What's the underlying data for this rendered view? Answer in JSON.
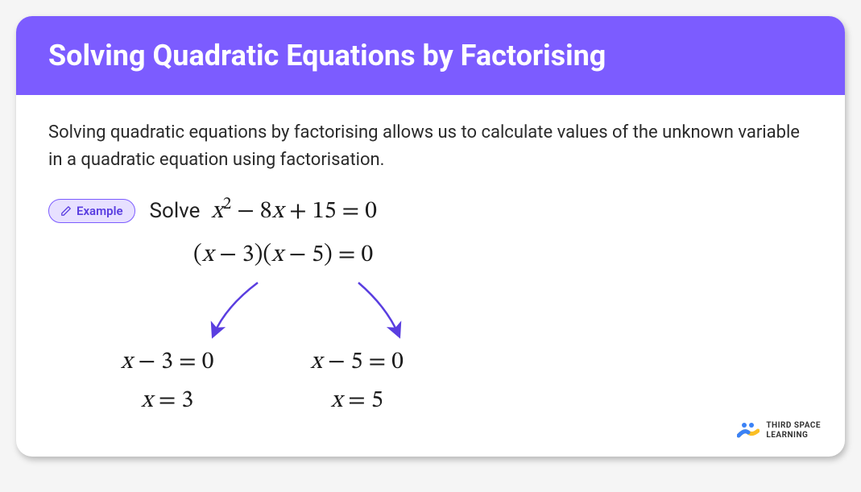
{
  "header": {
    "title": "Solving Quadratic Equations by Factorising",
    "bg_color": "#7c5cff",
    "text_color": "#ffffff"
  },
  "intro": "Solving quadratic equations by factorising allows us to calculate values of the unknown variable in a quadratic equation using factorisation.",
  "badge": {
    "label": "Example",
    "bg_color": "#e7e0ff",
    "border_color": "#7c5cff",
    "text_color": "#5a3ee0"
  },
  "example": {
    "solve_word": "Solve",
    "equation_html": "<span class='mi'>x</span><sup>2</sup> − 8<span class='mi'>x</span> + 15 = 0",
    "factored_html": "(<span class='mi'>x</span> − 3)(<span class='mi'>x</span> − 5) = 0",
    "left_factor_html": "<span class='mi'>x</span> − 3 = 0",
    "left_solution_html": "<span class='mi'>x</span> = 3",
    "right_factor_html": "<span class='mi'>x</span> − 5 = 0",
    "right_solution_html": "<span class='mi'>x</span> = 5",
    "arrow_color": "#5a3ee0"
  },
  "logo": {
    "line1": "THIRD SPACE",
    "line2": "LEARNING",
    "colors": {
      "blue": "#3b82f6",
      "yellow": "#fbbf24"
    }
  }
}
